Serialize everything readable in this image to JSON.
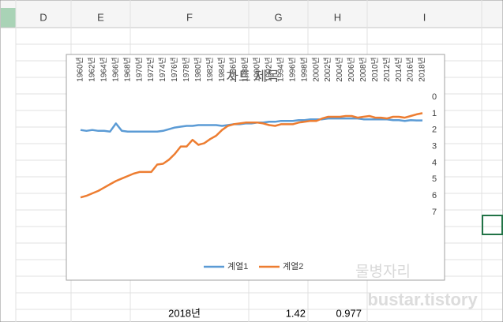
{
  "sheet": {
    "columns": [
      "D",
      "E",
      "F",
      "G",
      "H",
      "I"
    ],
    "row": [
      "2018년",
      "1.42",
      "0.977"
    ]
  },
  "watermark": [
    "물병자리",
    "bustar.tistory"
  ],
  "chart_data": {
    "type": "line",
    "title": "차트 제목",
    "categories": [
      "1960년",
      null,
      "1962년",
      null,
      "1964년",
      null,
      "1966년",
      null,
      "1968년",
      null,
      "1970년",
      null,
      "1972년",
      null,
      "1974년",
      null,
      "1976년",
      null,
      "1978년",
      null,
      "1980년",
      null,
      "1982년",
      null,
      "1984년",
      null,
      "1986년",
      null,
      "1988년",
      null,
      "1990년",
      null,
      "1992년",
      null,
      "1994년",
      null,
      "1996년",
      null,
      "1998년",
      null,
      "2000년",
      null,
      "2002년",
      null,
      "2004년",
      null,
      "2006년",
      null,
      "2008년",
      null,
      "2010년",
      null,
      "2012년",
      null,
      "2014년",
      null,
      "2016년",
      null,
      "2018년"
    ],
    "series": [
      {
        "name": "계열1",
        "color": "#5b9bd5",
        "values": [
          2.0,
          2.05,
          2.0,
          2.05,
          2.05,
          2.1,
          1.6,
          2.05,
          2.1,
          2.1,
          2.1,
          2.1,
          2.1,
          2.1,
          2.05,
          1.95,
          1.85,
          1.8,
          1.75,
          1.75,
          1.7,
          1.7,
          1.7,
          1.7,
          1.75,
          1.7,
          1.65,
          1.65,
          1.6,
          1.6,
          1.55,
          1.55,
          1.5,
          1.5,
          1.45,
          1.45,
          1.45,
          1.4,
          1.4,
          1.35,
          1.35,
          1.35,
          1.3,
          1.3,
          1.3,
          1.3,
          1.3,
          1.3,
          1.35,
          1.35,
          1.35,
          1.35,
          1.35,
          1.4,
          1.4,
          1.45,
          1.4,
          1.42,
          1.42
        ]
      },
      {
        "name": "계열2",
        "color": "#ed7d31",
        "values": [
          6.1,
          6.0,
          5.85,
          5.7,
          5.5,
          5.3,
          5.1,
          4.95,
          4.8,
          4.65,
          4.55,
          4.55,
          4.55,
          4.1,
          4.05,
          3.8,
          3.45,
          3.0,
          3.0,
          2.6,
          2.9,
          2.8,
          2.55,
          2.35,
          2.0,
          1.75,
          1.65,
          1.6,
          1.55,
          1.55,
          1.55,
          1.6,
          1.7,
          1.75,
          1.65,
          1.65,
          1.65,
          1.55,
          1.5,
          1.45,
          1.45,
          1.3,
          1.2,
          1.2,
          1.2,
          1.15,
          1.15,
          1.25,
          1.2,
          1.15,
          1.25,
          1.25,
          1.3,
          1.2,
          1.2,
          1.25,
          1.15,
          1.05,
          0.977
        ]
      }
    ],
    "ylim": [
      0,
      7
    ],
    "yticks": [
      0,
      1,
      2,
      3,
      4,
      5,
      6,
      7
    ],
    "y_reversed": true,
    "legend": "bottom"
  }
}
